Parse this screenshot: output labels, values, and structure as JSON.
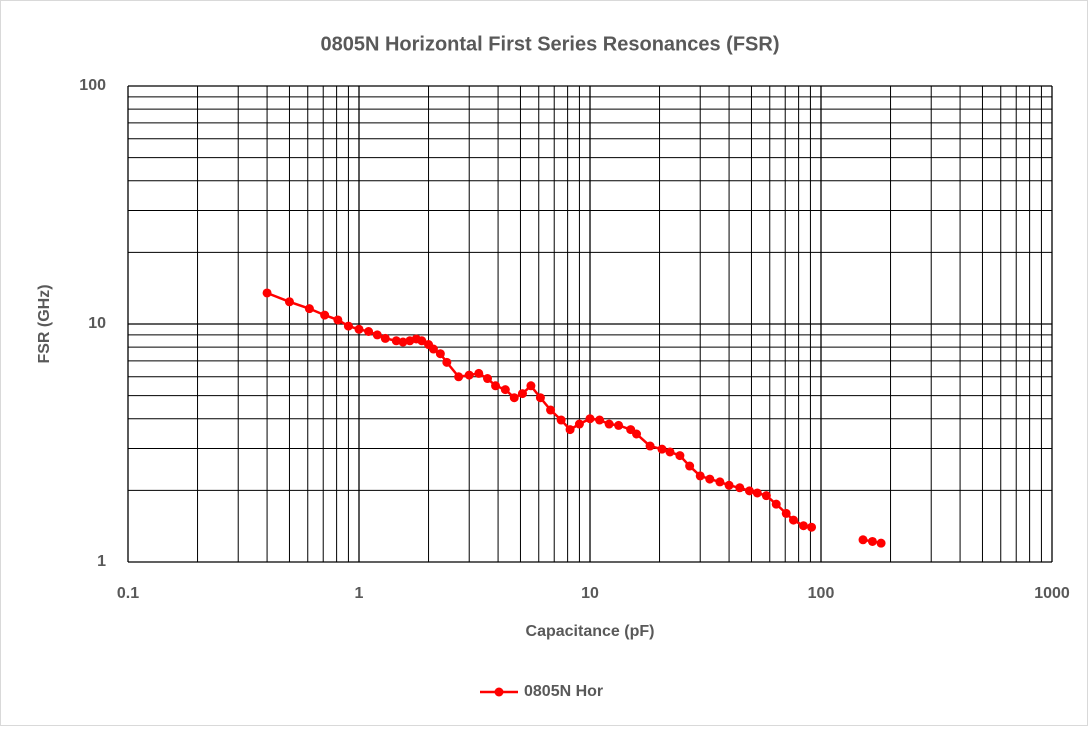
{
  "chart_data": {
    "type": "line",
    "title": "0805N Horizontal First Series Resonances (FSR)",
    "x_label": "Capacitance (pF)",
    "y_label": "FSR (GHz)",
    "xlog": true,
    "ylog": true,
    "grid": true,
    "xlim": [
      0.1,
      1000
    ],
    "ylim": [
      1,
      100
    ],
    "xticks": [
      0.1,
      1,
      10,
      100,
      1000
    ],
    "yticks": [
      1,
      10,
      100
    ],
    "xminorticks": [
      0.2,
      0.3,
      0.4,
      0.5,
      0.6,
      0.7,
      0.8,
      0.9,
      2,
      3,
      4,
      5,
      6,
      7,
      8,
      9,
      20,
      30,
      40,
      50,
      60,
      70,
      80,
      90,
      200,
      300,
      400,
      500,
      600,
      700,
      800,
      900
    ],
    "yminorticks": [
      2,
      3,
      4,
      5,
      6,
      7,
      8,
      9,
      20,
      30,
      40,
      50,
      60,
      70,
      80,
      90
    ],
    "legend": "bottom",
    "x": [
      0.4,
      0.5,
      0.61,
      0.71,
      0.81,
      0.9,
      1.0,
      1.1,
      1.2,
      1.3,
      1.45,
      1.55,
      1.66,
      1.77,
      1.87,
      2.0,
      2.1,
      2.25,
      2.4,
      2.7,
      3.0,
      3.3,
      3.6,
      3.9,
      4.3,
      4.7,
      5.1,
      5.55,
      6.1,
      6.75,
      7.5,
      8.2,
      9.0,
      10,
      11,
      12.1,
      13.3,
      15,
      15.9,
      18.2,
      20.5,
      22.2,
      24.5,
      27,
      30,
      33,
      36.5,
      40,
      44.5,
      49,
      53,
      58,
      64,
      70.7,
      76,
      84,
      91,
      null,
      152,
      167,
      182
    ],
    "series": [
      {
        "name": "0805N Hor",
        "color": "#ff0000",
        "values": [
          13.5,
          12.4,
          11.6,
          10.9,
          10.4,
          9.8,
          9.5,
          9.3,
          9.0,
          8.7,
          8.5,
          8.4,
          8.5,
          8.65,
          8.5,
          8.2,
          7.85,
          7.5,
          6.9,
          6.0,
          6.1,
          6.2,
          5.9,
          5.5,
          5.3,
          4.9,
          5.1,
          5.5,
          4.9,
          4.35,
          3.95,
          3.6,
          3.8,
          4.0,
          3.95,
          3.8,
          3.75,
          3.6,
          3.45,
          3.07,
          2.98,
          2.9,
          2.8,
          2.53,
          2.3,
          2.23,
          2.17,
          2.1,
          2.05,
          1.99,
          1.95,
          1.9,
          1.75,
          1.6,
          1.5,
          1.42,
          1.4,
          null,
          1.24,
          1.22,
          1.2
        ]
      }
    ]
  }
}
